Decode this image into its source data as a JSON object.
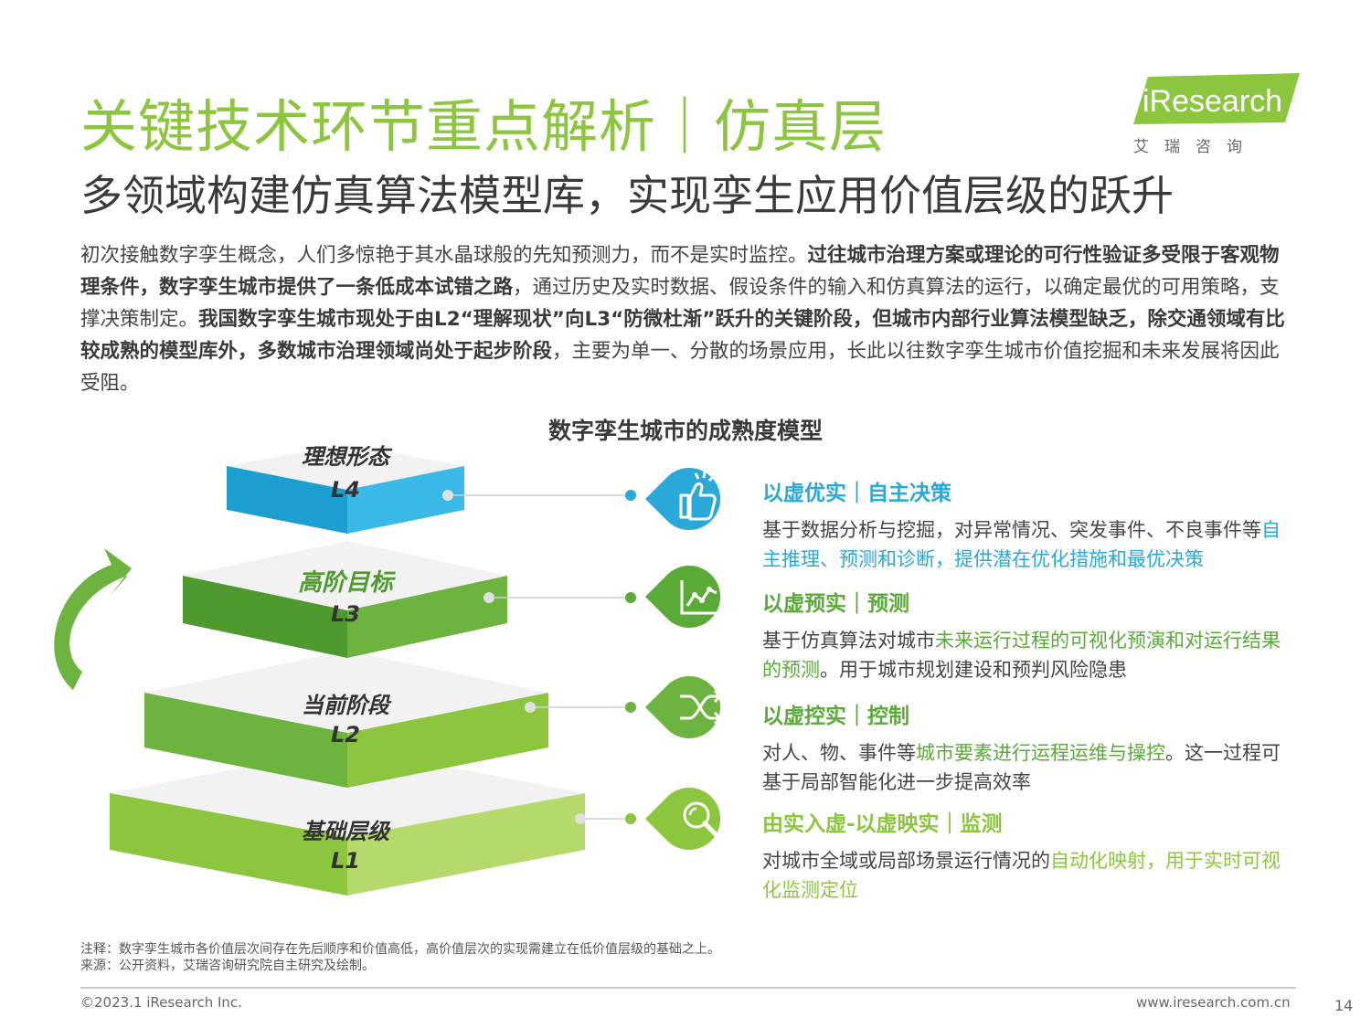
{
  "header": {
    "title": "关键技术环节重点解析｜仿真层",
    "subtitle": "多领域构建仿真算法模型库，实现孪生应用价值层级的跃升",
    "logo_text": "iResearch",
    "logo_cn": "艾瑞咨询"
  },
  "intro": {
    "p1": "初次接触数字孪生概念，人们多惊艳于其水晶球般的先知预测力，而不是实时监控。",
    "p2_bold": "过往城市治理方案或理论的可行性验证多受限于客观物理条件，数字孪生城市提供了一条低成本试错之路",
    "p3": "，通过历史及实时数据、假设条件的输入和仿真算法的运行，以确定最优的可用策略，支撑决策制定。",
    "p4_bold": "我国数字孪生城市现处于由L2“理解现状”向L3“防微杜渐”跃升的关键阶段，但城市内部行业算法模型缺乏，除交通领域有比较成熟的模型库外，多数城市治理领域尚处于起步阶段",
    "p5": "，主要为单一、分散的场景应用，长此以往数字孪生城市价值挖掘和未来发展将因此受阻。"
  },
  "chart": {
    "title": "数字孪生城市的成熟度模型",
    "levels": [
      {
        "name": "理想形态",
        "code": "L4",
        "icon": "thumbs-up-icon",
        "color": "#2aa8d8",
        "head": "以虚优实｜自主决策",
        "text_plain": "基于数据分析与挖掘，对异常情况、突发事件、不良事件等",
        "text_hl": "自主推理、预测和诊断，提供潜在优化措施和最优决策",
        "text_tail": ""
      },
      {
        "name": "高阶目标",
        "code": "L3",
        "icon": "line-chart-icon",
        "color": "#5aaa38",
        "head": "以虚预实｜预测",
        "text_plain": "基于仿真算法对城市",
        "text_hl": "未来运行过程的可视化预演和对运行结果的预测",
        "text_tail": "。用于城市规划建设和预判风险隐患"
      },
      {
        "name": "当前阶段",
        "code": "L2",
        "icon": "shuffle-arrows-icon",
        "color": "#6db33f",
        "head": "以虚控实｜控制",
        "text_plain": "对人、物、事件等",
        "text_hl": "城市要素进行运程运维与操控",
        "text_tail": "。这一过程可基于局部智能化进一步提高效率"
      },
      {
        "name": "基础层级",
        "code": "L1",
        "icon": "magnifier-icon",
        "color": "#8cc63f",
        "head": "由实入虚-以虚映实｜监测",
        "text_plain": "对城市全域或局部场景运行情况的",
        "text_hl": "自动化映射，用于实时可视化监测定位",
        "text_tail": ""
      }
    ]
  },
  "footer": {
    "note": "注释：数字孪生城市各价值层次间存在先后顺序和价值高低，高价值层次的实现需建立在低价值层级的基础之上。",
    "source": "来源：公开资料，艾瑞咨询研究院自主研究及绘制。",
    "copyright": "©2023.1 iResearch Inc.",
    "website": "www.iresearch.com.cn",
    "page": "14"
  }
}
